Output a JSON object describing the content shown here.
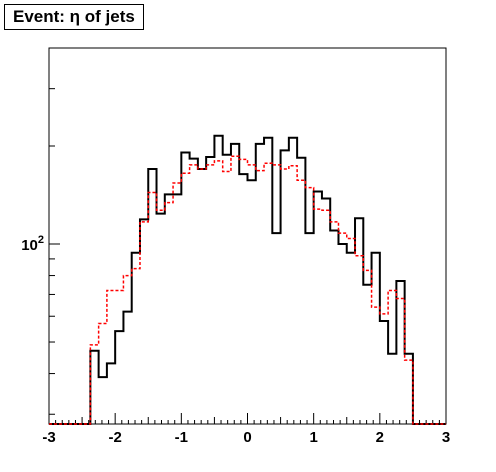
{
  "chart_data": {
    "type": "histogram",
    "title": "Event: η of jets",
    "xlabel": "",
    "ylabel": "",
    "xlim": [
      -3,
      3
    ],
    "ylim": [
      28,
      400
    ],
    "y_scale": "log",
    "x_ticks": [
      "-3",
      "-2",
      "-1",
      "0",
      "1",
      "2",
      "3"
    ],
    "y_ticks": [
      {
        "value": 100,
        "base": "10",
        "exp": "2"
      }
    ],
    "bin_edges": [
      -3.0,
      -2.875,
      -2.75,
      -2.625,
      -2.5,
      -2.375,
      -2.25,
      -2.125,
      -2.0,
      -1.875,
      -1.75,
      -1.625,
      -1.5,
      -1.375,
      -1.25,
      -1.125,
      -1.0,
      -0.875,
      -0.75,
      -0.625,
      -0.5,
      -0.375,
      -0.25,
      -0.125,
      0.0,
      0.125,
      0.25,
      0.375,
      0.5,
      0.625,
      0.75,
      0.875,
      1.0,
      1.125,
      1.25,
      1.375,
      1.5,
      1.625,
      1.75,
      1.875,
      2.0,
      2.125,
      2.25,
      2.375,
      2.5,
      2.625,
      2.75,
      2.875,
      3.0
    ],
    "series": [
      {
        "style": "solid",
        "color": "#000000",
        "values": [
          0,
          0,
          0,
          0,
          0,
          47,
          39,
          43,
          54,
          62,
          94,
          119,
          170,
          124,
          142,
          142,
          191,
          183,
          170,
          185,
          215,
          188,
          203,
          164,
          157,
          203,
          212,
          108,
          194,
          212,
          184,
          108,
          145,
          138,
          110,
          100,
          94,
          120,
          75,
          94,
          58,
          46,
          77,
          46,
          0,
          0,
          0,
          0
        ]
      },
      {
        "style": "dashed",
        "color": "#ff0000",
        "values": [
          0,
          0,
          0,
          0,
          0,
          49,
          57,
          72,
          72,
          80,
          84,
          117,
          144,
          127,
          134,
          154,
          165,
          175,
          170,
          175,
          180,
          167,
          186,
          182,
          175,
          168,
          177,
          175,
          170,
          174,
          157,
          149,
          128,
          127,
          117,
          108,
          104,
          92,
          83,
          64,
          61,
          72,
          68,
          44,
          0,
          0,
          0,
          0
        ]
      }
    ]
  }
}
